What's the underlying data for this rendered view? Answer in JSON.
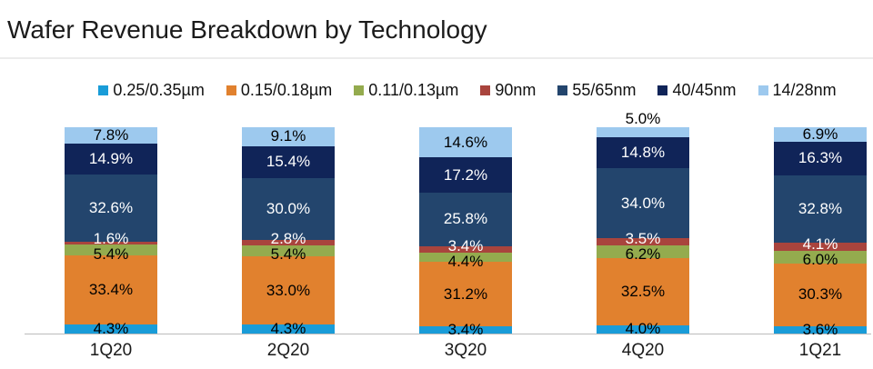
{
  "title": "Wafer Revenue Breakdown by Technology",
  "chart_data": {
    "type": "bar",
    "variant": "stacked-100-percent-column",
    "title": "Wafer Revenue Breakdown by Technology",
    "categories": [
      "1Q20",
      "2Q20",
      "3Q20",
      "4Q20",
      "1Q21"
    ],
    "unit": "%",
    "ylim": [
      0,
      100
    ],
    "grid": false,
    "legend_position": "top",
    "axis_line_color": "#bbbbbb",
    "series": [
      {
        "name": "0.25/0.35µm",
        "color": "#199cd8",
        "label_color": "#000000",
        "values": [
          4.3,
          4.3,
          3.4,
          4.0,
          3.6
        ]
      },
      {
        "name": "0.15/0.18µm",
        "color": "#e1812e",
        "label_color": "#000000",
        "values": [
          33.4,
          33.0,
          31.2,
          32.5,
          30.3
        ]
      },
      {
        "name": "0.11/0.13µm",
        "color": "#94ab4e",
        "label_color": "#000000",
        "values": [
          5.4,
          5.4,
          4.4,
          6.2,
          6.0
        ]
      },
      {
        "name": "90nm",
        "color": "#a9443d",
        "label_color": "#ffffff",
        "values": [
          1.6,
          2.8,
          3.4,
          3.5,
          4.1
        ]
      },
      {
        "name": "55/65nm",
        "color": "#23456d",
        "label_color": "#ffffff",
        "values": [
          32.6,
          30.0,
          25.8,
          34.0,
          32.8
        ]
      },
      {
        "name": "40/45nm",
        "color": "#102458",
        "label_color": "#ffffff",
        "values": [
          14.9,
          15.4,
          17.2,
          14.8,
          16.3
        ]
      },
      {
        "name": "14/28nm",
        "color": "#9dc9ee",
        "label_color": "#000000",
        "values": [
          7.8,
          9.1,
          14.6,
          5.0,
          6.9
        ]
      }
    ]
  }
}
